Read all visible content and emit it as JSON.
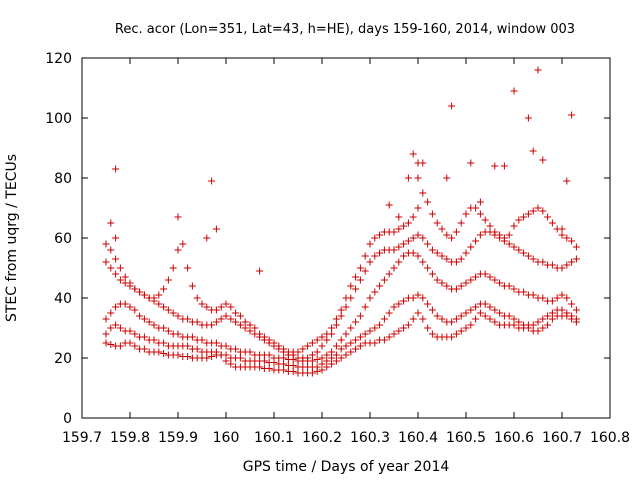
{
  "chart_data": {
    "type": "scatter",
    "title": "Rec. acor (Lon=351, Lat=43, h=HE), days 159-160, 2014, window 003",
    "xlabel": "GPS time / Days of year 2014",
    "ylabel": "STEC from uqrg / TECUs",
    "xlim": [
      159.7,
      160.8
    ],
    "ylim": [
      0,
      120
    ],
    "xticks": [
      159.7,
      159.8,
      159.9,
      160,
      160.1,
      160.2,
      160.3,
      160.4,
      160.5,
      160.6,
      160.7,
      160.8
    ],
    "xtick_labels": [
      "159.7",
      "159.8",
      "159.9",
      "160",
      "160.1",
      "160.2",
      "160.3",
      "160.4",
      "160.5",
      "160.6",
      "160.7",
      "160.8"
    ],
    "yticks": [
      0,
      20,
      40,
      60,
      80,
      100,
      120
    ],
    "ytick_labels": [
      "0",
      "20",
      "40",
      "60",
      "80",
      "100",
      "120"
    ],
    "marker": "+",
    "marker_color": "#cc0000",
    "grid": false,
    "series": [
      {
        "x": [
          159.75,
          159.76,
          159.77,
          159.78,
          159.79,
          159.8,
          159.81,
          159.82,
          159.83,
          159.84,
          159.85,
          159.86,
          159.87,
          159.88,
          159.89,
          159.9,
          159.91,
          159.92,
          159.93,
          159.94,
          159.95,
          159.96,
          159.97,
          159.98,
          159.99,
          160.0,
          160.01,
          160.02,
          160.03,
          160.04,
          160.05,
          160.06,
          160.07,
          160.08,
          160.09,
          160.1,
          160.11,
          160.12,
          160.13,
          160.14,
          160.15,
          160.16,
          160.17,
          160.18,
          160.19,
          160.2,
          160.21,
          160.22,
          160.23,
          160.24,
          160.25,
          160.26,
          160.27,
          160.28,
          160.29,
          160.3,
          160.31,
          160.32,
          160.33,
          160.34,
          160.35,
          160.36,
          160.37,
          160.38,
          160.39,
          160.4,
          160.41,
          160.42,
          160.43,
          160.44,
          160.45,
          160.46,
          160.47,
          160.48,
          160.49,
          160.5,
          160.51,
          160.52,
          160.53,
          160.54,
          160.55,
          160.56,
          160.57,
          160.58,
          160.59,
          160.6,
          160.61,
          160.62,
          160.63,
          160.64,
          160.65,
          160.66,
          160.67,
          160.68,
          160.69,
          160.7,
          160.71,
          160.72,
          160.73
        ],
        "y": [
          25,
          24.5,
          24,
          24,
          25,
          25,
          24,
          23,
          23,
          22,
          22,
          22,
          21.5,
          21,
          21,
          21,
          20.5,
          20.5,
          20,
          20,
          20,
          20,
          20.5,
          21,
          21,
          19,
          18,
          17,
          17,
          17,
          17,
          17,
          17,
          16.5,
          16.5,
          16,
          16,
          16,
          15.5,
          15.5,
          15,
          15,
          15,
          15,
          15.5,
          16,
          17,
          18,
          19,
          20,
          21,
          22,
          23,
          24,
          25,
          25,
          25,
          26,
          26,
          27,
          28,
          29,
          30,
          31,
          33,
          35,
          33,
          30,
          28,
          27,
          27,
          27,
          27,
          28,
          29,
          30,
          31,
          33,
          35,
          34,
          33,
          32,
          31,
          31,
          31,
          31,
          30,
          30,
          30,
          29,
          29,
          30,
          31,
          33,
          34,
          34,
          34,
          33,
          32
        ]
      },
      {
        "x": [
          159.75,
          159.76,
          159.77,
          159.78,
          159.79,
          159.8,
          159.81,
          159.82,
          159.83,
          159.84,
          159.85,
          159.86,
          159.87,
          159.88,
          159.89,
          159.9,
          159.91,
          159.92,
          159.93,
          159.94,
          159.95,
          159.96,
          159.97,
          159.98,
          159.99,
          160.0,
          160.01,
          160.02,
          160.03,
          160.04,
          160.05,
          160.06,
          160.07,
          160.08,
          160.09,
          160.1,
          160.11,
          160.12,
          160.13,
          160.14,
          160.15,
          160.16,
          160.17,
          160.18,
          160.19,
          160.2,
          160.21,
          160.22,
          160.23,
          160.24,
          160.25,
          160.26,
          160.27,
          160.28,
          160.29,
          160.3,
          160.31,
          160.32,
          160.33,
          160.34,
          160.35,
          160.36,
          160.37,
          160.38,
          160.39,
          160.4,
          160.41,
          160.42,
          160.43,
          160.44,
          160.45,
          160.46,
          160.47,
          160.48,
          160.49,
          160.5,
          160.51,
          160.52,
          160.53,
          160.54,
          160.55,
          160.56,
          160.57,
          160.58,
          160.59,
          160.6,
          160.61,
          160.62,
          160.63,
          160.64,
          160.65,
          160.66,
          160.67,
          160.68,
          160.69,
          160.7,
          160.71,
          160.72,
          160.73
        ],
        "y": [
          28,
          30,
          31,
          30,
          29,
          29,
          28,
          27,
          27,
          26,
          26,
          25,
          25,
          24,
          24,
          24,
          24,
          24,
          23,
          23,
          22,
          22,
          22,
          22,
          21,
          21,
          20,
          20,
          20,
          19,
          19,
          19,
          19,
          19,
          18.5,
          18.5,
          18,
          18,
          17.5,
          17.5,
          17,
          17,
          17,
          17,
          17,
          18,
          19,
          20,
          21,
          23,
          24,
          25,
          26,
          27,
          28,
          29,
          30,
          31,
          33,
          35,
          37,
          38,
          39,
          40,
          40,
          41,
          40,
          38,
          36,
          34,
          33,
          32,
          32,
          33,
          34,
          35,
          36,
          37,
          38,
          38,
          37,
          36,
          35,
          34,
          34,
          33,
          32,
          31,
          31,
          31,
          32,
          33,
          34,
          35,
          36,
          36,
          35,
          34,
          33
        ]
      },
      {
        "x": [
          159.75,
          159.76,
          159.77,
          159.78,
          159.79,
          159.8,
          159.81,
          159.82,
          159.83,
          159.84,
          159.85,
          159.86,
          159.87,
          159.88,
          159.89,
          159.9,
          159.91,
          159.92,
          159.93,
          159.94,
          159.95,
          159.96,
          159.97,
          159.98,
          159.99,
          160.0,
          160.01,
          160.02,
          160.03,
          160.04,
          160.05,
          160.06,
          160.07,
          160.08,
          160.09,
          160.1,
          160.11,
          160.12,
          160.13,
          160.14,
          160.15,
          160.16,
          160.17,
          160.18,
          160.19,
          160.2,
          160.21,
          160.22,
          160.23,
          160.24,
          160.25,
          160.26,
          160.27,
          160.28,
          160.29,
          160.3,
          160.31,
          160.32,
          160.33,
          160.34,
          160.35,
          160.36,
          160.37,
          160.38,
          160.39,
          160.4,
          160.41,
          160.42,
          160.43,
          160.44,
          160.45,
          160.46,
          160.47,
          160.48,
          160.49,
          160.5,
          160.51,
          160.52,
          160.53,
          160.54,
          160.55,
          160.56,
          160.57,
          160.58,
          160.59,
          160.6,
          160.61,
          160.62,
          160.63,
          160.64,
          160.65,
          160.66,
          160.67,
          160.68,
          160.69,
          160.7,
          160.71,
          160.72,
          160.73
        ],
        "y": [
          33,
          35,
          37,
          38,
          38,
          37,
          36,
          34,
          33,
          32,
          31,
          30,
          30,
          29,
          28,
          28,
          27,
          27,
          27,
          26,
          26,
          25,
          25,
          25,
          24,
          24,
          23,
          23,
          22,
          22,
          22,
          21,
          21,
          21,
          21,
          20,
          20,
          20,
          19.5,
          19.5,
          19,
          19,
          19,
          19,
          19.5,
          20,
          21,
          22,
          24,
          26,
          28,
          30,
          32,
          34,
          37,
          40,
          42,
          44,
          46,
          48,
          50,
          52,
          54,
          55,
          55,
          54,
          52,
          50,
          48,
          46,
          45,
          44,
          43,
          43,
          44,
          45,
          46,
          47,
          48,
          48,
          47,
          46,
          45,
          44,
          44,
          43,
          42,
          42,
          41,
          41,
          40,
          40,
          39,
          39,
          40,
          41,
          40,
          38,
          36
        ]
      },
      {
        "x": [
          159.75,
          159.76,
          159.77,
          159.78,
          159.79,
          159.8,
          159.81,
          159.82,
          159.83,
          159.84,
          159.85,
          159.86,
          159.87,
          159.88,
          159.89,
          159.9,
          159.91,
          159.92,
          159.93,
          159.94,
          159.95,
          159.96,
          159.97,
          159.98,
          159.99,
          160.0,
          160.01,
          160.02,
          160.03,
          160.04,
          160.05,
          160.06,
          160.07,
          160.08,
          160.09,
          160.1,
          160.11,
          160.12,
          160.13,
          160.14,
          160.15,
          160.16,
          160.17,
          160.18,
          160.19,
          160.2,
          160.21,
          160.22,
          160.23,
          160.24,
          160.25,
          160.26,
          160.27,
          160.28,
          160.29,
          160.3,
          160.31,
          160.32,
          160.33,
          160.34,
          160.35,
          160.36,
          160.37,
          160.38,
          160.39,
          160.4,
          160.41,
          160.42,
          160.43,
          160.44,
          160.45,
          160.46,
          160.47,
          160.48,
          160.49,
          160.5,
          160.51,
          160.52,
          160.53,
          160.54,
          160.55,
          160.56,
          160.57,
          160.58,
          160.59,
          160.6,
          160.61,
          160.62,
          160.63,
          160.64,
          160.65,
          160.66,
          160.67,
          160.68,
          160.69,
          160.7,
          160.71,
          160.72,
          160.73
        ],
        "y": [
          52,
          50,
          48,
          46,
          45,
          44,
          43,
          42,
          41,
          40,
          39,
          38,
          37,
          36,
          35,
          34,
          33,
          33,
          32,
          32,
          31,
          31,
          31,
          32,
          33,
          34,
          33,
          32,
          31,
          30,
          29,
          28,
          27,
          26,
          25,
          24,
          23,
          22,
          21,
          21,
          20,
          20,
          20,
          21,
          22,
          24,
          26,
          28,
          31,
          34,
          37,
          40,
          43,
          46,
          49,
          52,
          54,
          55,
          56,
          56,
          56,
          57,
          58,
          59,
          60,
          61,
          60,
          58,
          56,
          55,
          54,
          53,
          52,
          52,
          53,
          55,
          57,
          59,
          61,
          62,
          62,
          61,
          60,
          59,
          58,
          57,
          56,
          55,
          54,
          53,
          52,
          52,
          51,
          51,
          50,
          50,
          51,
          52,
          53
        ]
      },
      {
        "x": [
          159.75,
          159.76,
          159.77,
          159.78,
          159.79,
          159.8,
          159.81,
          159.82,
          159.83,
          159.84,
          159.85,
          159.86,
          159.87,
          159.88,
          159.89,
          159.9,
          159.91,
          159.92,
          159.93,
          159.94,
          159.95,
          159.96,
          159.97,
          159.98,
          159.99,
          160.0,
          160.01,
          160.02,
          160.03,
          160.04,
          160.05,
          160.06,
          160.07,
          160.08,
          160.09,
          160.1,
          160.11,
          160.12,
          160.13,
          160.14,
          160.15,
          160.16,
          160.17,
          160.18,
          160.19,
          160.2,
          160.21,
          160.22,
          160.23,
          160.24,
          160.25,
          160.26,
          160.27,
          160.28,
          160.29,
          160.3,
          160.31,
          160.32,
          160.33,
          160.34,
          160.35,
          160.36,
          160.37,
          160.38,
          160.39,
          160.4,
          160.41,
          160.42,
          160.43,
          160.44,
          160.45,
          160.46,
          160.47,
          160.48,
          160.49,
          160.5,
          160.51,
          160.52,
          160.53,
          160.54,
          160.55,
          160.56,
          160.57,
          160.58,
          160.59,
          160.6,
          160.61,
          160.62,
          160.63,
          160.64,
          160.65,
          160.66,
          160.67,
          160.68,
          160.69,
          160.7,
          160.71,
          160.72,
          160.73
        ],
        "y": [
          58,
          56,
          53,
          50,
          47,
          45,
          43,
          42,
          41,
          40,
          40,
          41,
          43,
          46,
          50,
          56,
          58,
          50,
          44,
          40,
          38,
          37,
          36,
          36,
          37,
          38,
          37,
          35,
          34,
          32,
          31,
          30,
          28,
          27,
          26,
          25,
          24,
          23,
          22,
          22,
          22,
          23,
          24,
          25,
          26,
          27,
          28,
          30,
          33,
          36,
          40,
          44,
          47,
          50,
          54,
          58,
          60,
          61,
          62,
          62,
          62,
          63,
          64,
          65,
          67,
          70,
          75,
          72,
          68,
          65,
          63,
          61,
          60,
          62,
          65,
          68,
          70,
          70,
          68,
          66,
          64,
          62,
          61,
          60,
          61,
          64,
          66,
          67,
          68,
          69,
          70,
          69,
          67,
          65,
          63,
          61,
          60,
          59,
          57
        ]
      },
      {
        "x": [
          159.76,
          159.77,
          159.77,
          159.9,
          159.96,
          159.97,
          159.98,
          160.07,
          160.34,
          160.36,
          160.38,
          160.39,
          160.4,
          160.4,
          160.41,
          160.46,
          160.47,
          160.51,
          160.53,
          160.56,
          160.58,
          160.6,
          160.63,
          160.64,
          160.65,
          160.66,
          160.7,
          160.71,
          160.72
        ],
        "y": [
          65,
          83,
          60,
          67,
          60,
          79,
          63,
          49,
          71,
          67,
          80,
          88,
          85,
          80,
          85,
          80,
          104,
          85,
          72,
          84,
          84,
          109,
          100,
          89,
          116,
          86,
          63,
          79,
          101
        ]
      }
    ]
  }
}
